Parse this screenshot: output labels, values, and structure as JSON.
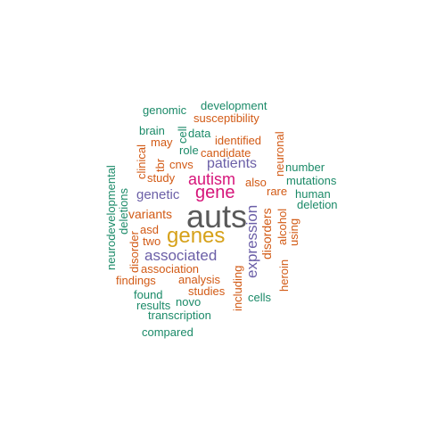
{
  "colors": {
    "gray": "#5a5a5a",
    "yellow": "#d6a11a",
    "magenta": "#d6157a",
    "purple": "#6b5fa7",
    "orange": "#d25a15",
    "teal": "#1b8a68"
  },
  "words": [
    {
      "text": "auts",
      "color": "gray"
    },
    {
      "text": "genes",
      "color": "yellow"
    },
    {
      "text": "gene",
      "color": "magenta"
    },
    {
      "text": "autism",
      "color": "magenta"
    },
    {
      "text": "expression",
      "color": "purple"
    },
    {
      "text": "associated",
      "color": "purple"
    },
    {
      "text": "patients",
      "color": "purple"
    },
    {
      "text": "genetic",
      "color": "purple"
    },
    {
      "text": "disorders",
      "color": "orange"
    },
    {
      "text": "variants",
      "color": "orange"
    },
    {
      "text": "association",
      "color": "orange"
    },
    {
      "text": "study",
      "color": "orange"
    },
    {
      "text": "cnvs",
      "color": "orange"
    },
    {
      "text": "identified",
      "color": "orange"
    },
    {
      "text": "candidate",
      "color": "orange"
    },
    {
      "text": "susceptibility",
      "color": "orange"
    },
    {
      "text": "rare",
      "color": "orange"
    },
    {
      "text": "including",
      "color": "orange"
    },
    {
      "text": "analysis",
      "color": "orange"
    },
    {
      "text": "alcohol",
      "color": "orange"
    },
    {
      "text": "heroin",
      "color": "orange"
    },
    {
      "text": "neuronal",
      "color": "orange"
    },
    {
      "text": "also",
      "color": "orange"
    },
    {
      "text": "using",
      "color": "orange"
    },
    {
      "text": "asd",
      "color": "orange"
    },
    {
      "text": "two",
      "color": "orange"
    },
    {
      "text": "disorder",
      "color": "orange"
    },
    {
      "text": "studies",
      "color": "orange"
    },
    {
      "text": "findings",
      "color": "orange"
    },
    {
      "text": "tbr",
      "color": "orange"
    },
    {
      "text": "may",
      "color": "orange"
    },
    {
      "text": "clinical",
      "color": "orange"
    },
    {
      "text": "role",
      "color": "teal"
    },
    {
      "text": "data",
      "color": "teal"
    },
    {
      "text": "cell",
      "color": "teal"
    },
    {
      "text": "brain",
      "color": "teal"
    },
    {
      "text": "genomic",
      "color": "teal"
    },
    {
      "text": "development",
      "color": "teal"
    },
    {
      "text": "number",
      "color": "teal"
    },
    {
      "text": "mutations",
      "color": "teal"
    },
    {
      "text": "human",
      "color": "teal"
    },
    {
      "text": "deletion",
      "color": "teal"
    },
    {
      "text": "deletions",
      "color": "teal"
    },
    {
      "text": "neurodevelopmental",
      "color": "teal"
    },
    {
      "text": "found",
      "color": "teal"
    },
    {
      "text": "novo",
      "color": "teal"
    },
    {
      "text": "results",
      "color": "teal"
    },
    {
      "text": "cells",
      "color": "teal"
    },
    {
      "text": "transcription",
      "color": "teal"
    },
    {
      "text": "compared",
      "color": "teal"
    }
  ]
}
